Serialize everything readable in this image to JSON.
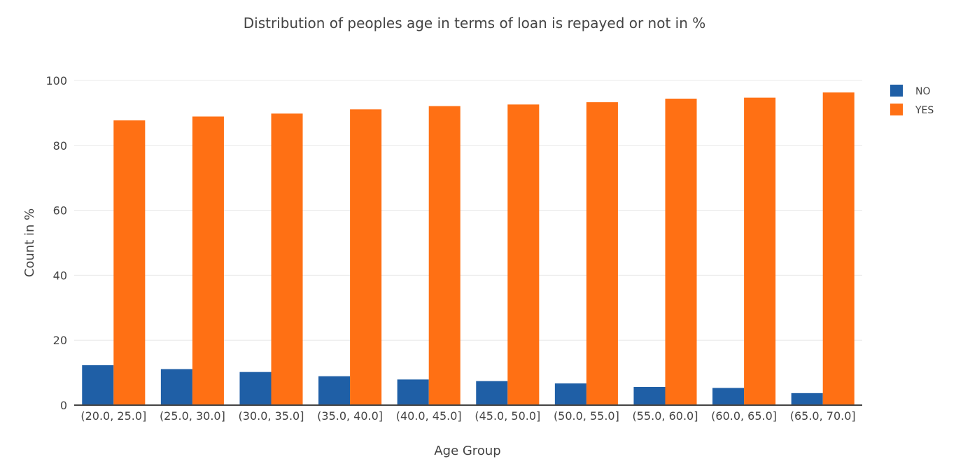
{
  "chart_data": {
    "type": "bar",
    "title": "Distribution of peoples age in terms of loan is repayed or not in %",
    "xlabel": "Age Group",
    "ylabel": "Count in %",
    "ylim": [
      0,
      100
    ],
    "yticks": [
      0,
      20,
      40,
      60,
      80,
      100
    ],
    "grid": true,
    "legend_position": "top-right",
    "categories": [
      "(20.0, 25.0]",
      "(25.0, 30.0]",
      "(30.0, 35.0]",
      "(35.0, 40.0]",
      "(40.0, 45.0]",
      "(45.0, 50.0]",
      "(50.0, 55.0]",
      "(55.0, 60.0]",
      "(60.0, 65.0]",
      "(65.0, 70.0]"
    ],
    "series": [
      {
        "name": "NO",
        "color": "#1f5fa6",
        "values": [
          12.3,
          11.1,
          10.2,
          8.9,
          7.9,
          7.4,
          6.7,
          5.6,
          5.3,
          3.7
        ]
      },
      {
        "name": "YES",
        "color": "#ff7014",
        "values": [
          87.7,
          88.9,
          89.8,
          91.1,
          92.1,
          92.6,
          93.3,
          94.4,
          94.7,
          96.3
        ]
      }
    ]
  }
}
